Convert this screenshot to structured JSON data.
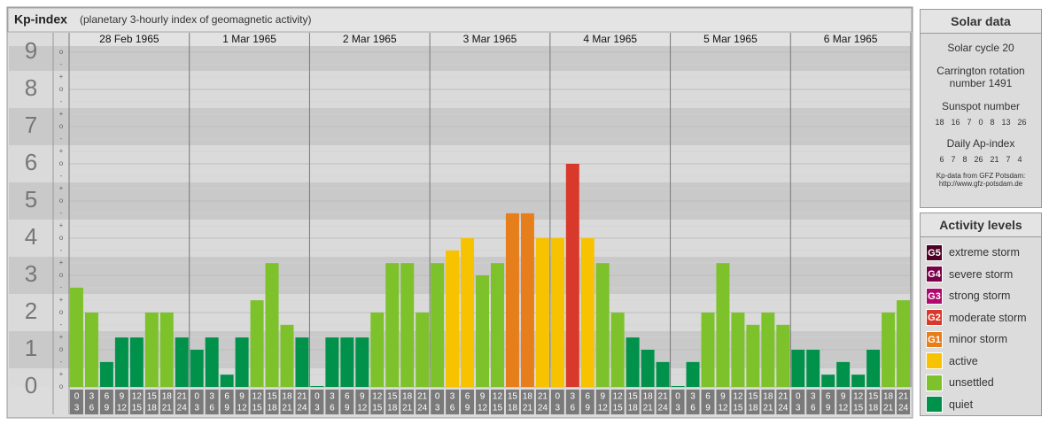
{
  "chart_data": {
    "type": "bar",
    "title": "Kp-index",
    "subtitle": "(planetary 3-hourly index of geomagnetic activity)",
    "ylim": [
      0,
      9
    ],
    "yticks": [
      0,
      1,
      2,
      3,
      4,
      5,
      6,
      7,
      8,
      9
    ],
    "minor_tick_labels": [
      "-",
      "o",
      "+"
    ],
    "grid": true,
    "hour_labels": [
      [
        "0",
        "3"
      ],
      [
        "3",
        "6"
      ],
      [
        "6",
        "9"
      ],
      [
        "9",
        "12"
      ],
      [
        "12",
        "15"
      ],
      [
        "15",
        "18"
      ],
      [
        "18",
        "21"
      ],
      [
        "21",
        "24"
      ]
    ],
    "days": [
      {
        "label": "28 Feb 1965",
        "values": [
          2.67,
          2,
          0.67,
          1.33,
          1.33,
          2,
          2,
          1.33
        ],
        "colors": [
          "#7dc22b",
          "#7dc22b",
          "#00924a",
          "#00924a",
          "#00924a",
          "#7dc22b",
          "#7dc22b",
          "#00924a"
        ]
      },
      {
        "label": "1 Mar 1965",
        "values": [
          1,
          1.33,
          0.33,
          1.33,
          2.33,
          3.33,
          1.67,
          1.33
        ],
        "colors": [
          "#00924a",
          "#00924a",
          "#00924a",
          "#00924a",
          "#7dc22b",
          "#7dc22b",
          "#7dc22b",
          "#00924a"
        ]
      },
      {
        "label": "2 Mar 1965",
        "values": [
          0,
          1.33,
          1.33,
          1.33,
          2,
          3.33,
          3.33,
          2
        ],
        "colors": [
          "#00924a",
          "#00924a",
          "#00924a",
          "#00924a",
          "#7dc22b",
          "#7dc22b",
          "#7dc22b",
          "#7dc22b"
        ]
      },
      {
        "label": "3 Mar 1965",
        "values": [
          3.33,
          3.67,
          4,
          3,
          3.33,
          4.67,
          4.67,
          4
        ],
        "colors": [
          "#7dc22b",
          "#f7c200",
          "#f7c200",
          "#7dc22b",
          "#7dc22b",
          "#e77e1c",
          "#e77e1c",
          "#f7c200"
        ]
      },
      {
        "label": "4 Mar 1965",
        "values": [
          4,
          6,
          4,
          3.33,
          2,
          1.33,
          1,
          0.67
        ],
        "colors": [
          "#f7c200",
          "#d8392b",
          "#f7c200",
          "#7dc22b",
          "#7dc22b",
          "#00924a",
          "#00924a",
          "#00924a"
        ]
      },
      {
        "label": "5 Mar 1965",
        "values": [
          0,
          0.67,
          2,
          3.33,
          2,
          1.67,
          2,
          1.67
        ],
        "colors": [
          "#00924a",
          "#00924a",
          "#7dc22b",
          "#7dc22b",
          "#7dc22b",
          "#7dc22b",
          "#7dc22b",
          "#7dc22b"
        ]
      },
      {
        "label": "6 Mar 1965",
        "values": [
          1,
          1,
          0.33,
          0.67,
          0.33,
          1,
          2,
          2.33
        ],
        "colors": [
          "#00924a",
          "#00924a",
          "#00924a",
          "#00924a",
          "#00924a",
          "#00924a",
          "#7dc22b",
          "#7dc22b"
        ]
      }
    ]
  },
  "solar_data": {
    "title": "Solar data",
    "cycle": "Solar cycle 20",
    "carrington": "Carrington rotation number 1491",
    "sunspot_title": "Sunspot number",
    "sunspot_numbers": [
      18,
      16,
      7,
      0,
      8,
      13,
      26
    ],
    "ap_title": "Daily Ap-index",
    "ap_values": [
      6,
      7,
      8,
      26,
      21,
      7,
      4
    ],
    "source": "Kp-data from GFZ Potsdam: http://www.gfz-potsdam.de"
  },
  "activity_levels": {
    "title": "Activity levels",
    "items": [
      {
        "badge": "G5",
        "label": "extreme storm",
        "color": "#4e0026"
      },
      {
        "badge": "G4",
        "label": "severe storm",
        "color": "#7a0048"
      },
      {
        "badge": "G3",
        "label": "strong storm",
        "color": "#b0086e"
      },
      {
        "badge": "G2",
        "label": "moderate storm",
        "color": "#d8392b"
      },
      {
        "badge": "G1",
        "label": "minor storm",
        "color": "#e77e1c"
      },
      {
        "label": "active",
        "color": "#f7c200"
      },
      {
        "label": "unsettled",
        "color": "#7dc22b"
      },
      {
        "label": "quiet",
        "color": "#00924a"
      }
    ]
  }
}
